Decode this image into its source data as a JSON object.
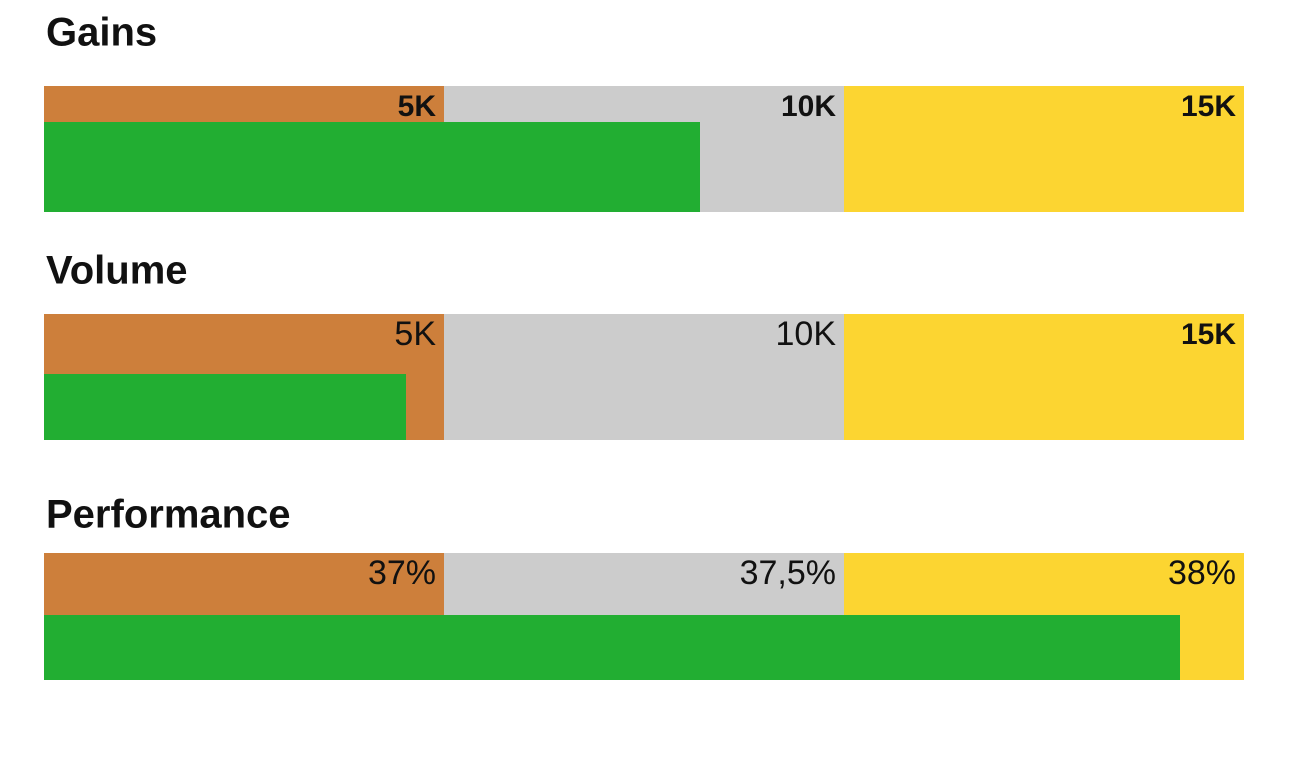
{
  "chart_data": [
    {
      "type": "bullet",
      "title": "Gains",
      "xlim": [
        0,
        15000
      ],
      "xticks": [
        {
          "value": 5000,
          "label": "5K"
        },
        {
          "value": 10000,
          "label": "10K"
        },
        {
          "value": 15000,
          "label": "15K"
        }
      ],
      "tick_bold": [
        true,
        true,
        true
      ],
      "range_colors": [
        "#cd7f3b",
        "#cccccc",
        "#fcd531"
      ],
      "value": 8200,
      "color": "#22ae32"
    },
    {
      "type": "bullet",
      "title": "Volume",
      "xlim": [
        0,
        15000
      ],
      "xticks": [
        {
          "value": 5000,
          "label": "5K"
        },
        {
          "value": 10000,
          "label": "10K"
        },
        {
          "value": 15000,
          "label": "15K"
        }
      ],
      "tick_bold": [
        false,
        false,
        true
      ],
      "range_colors": [
        "#cd7f3b",
        "#cccccc",
        "#fcd531"
      ],
      "value": 4525,
      "color": "#22ae32"
    },
    {
      "type": "bullet",
      "title": "Performance",
      "xlim": [
        36.5,
        38
      ],
      "xticks": [
        {
          "value": 37,
          "label": "37%"
        },
        {
          "value": 37.5,
          "label": "37,5%"
        },
        {
          "value": 38,
          "label": "38%"
        }
      ],
      "tick_bold": [
        false,
        false,
        false
      ],
      "range_colors": [
        "#cd7f3b",
        "#cccccc",
        "#fcd531"
      ],
      "value": 37.92,
      "color": "#22ae32"
    }
  ]
}
